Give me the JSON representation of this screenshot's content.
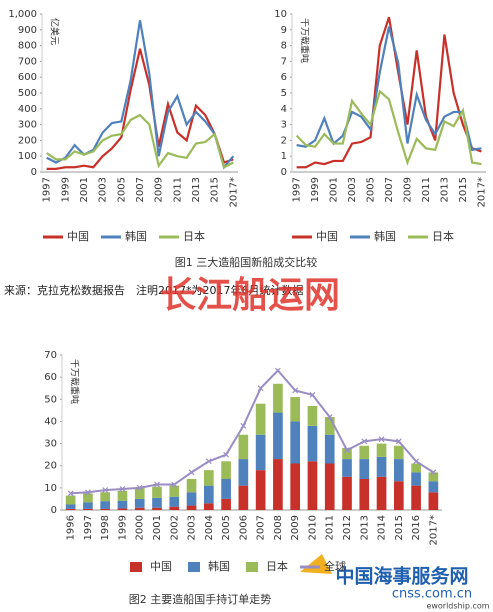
{
  "chart_data": [
    {
      "type": "line",
      "y_label": "亿美元",
      "categories": [
        "1997",
        null,
        "1999",
        null,
        "2001",
        null,
        "2003",
        null,
        "2005",
        null,
        "2007",
        null,
        "2009",
        null,
        "2011",
        null,
        "2013",
        null,
        "2015",
        null,
        "2017*"
      ],
      "series": [
        {
          "name": "中国",
          "color": "#c8302a",
          "values": [
            20,
            20,
            30,
            30,
            40,
            30,
            100,
            150,
            220,
            520,
            780,
            550,
            160,
            430,
            250,
            200,
            420,
            360,
            240,
            60,
            80
          ]
        },
        {
          "name": "韩国",
          "color": "#4f81bd",
          "values": [
            90,
            60,
            90,
            170,
            110,
            140,
            250,
            310,
            320,
            580,
            960,
            620,
            100,
            380,
            480,
            300,
            380,
            320,
            240,
            30,
            100
          ]
        },
        {
          "name": "日本",
          "color": "#9bbb59",
          "values": [
            120,
            80,
            80,
            130,
            110,
            130,
            200,
            230,
            240,
            330,
            360,
            300,
            40,
            120,
            100,
            90,
            180,
            190,
            240,
            30,
            60
          ]
        }
      ],
      "ylim": [
        0,
        1000
      ],
      "yticks": [
        0,
        100,
        200,
        300,
        400,
        500,
        600,
        700,
        800,
        900,
        {
          "value": 1000,
          "label": "1,000"
        }
      ],
      "grid": false,
      "legend": "bottom"
    },
    {
      "type": "line",
      "y_label": "千万载重吨",
      "categories": [
        "1997",
        null,
        "1999",
        null,
        "2001",
        null,
        "2003",
        null,
        "2005",
        null,
        "2007",
        null,
        "2009",
        null,
        "2011",
        null,
        "2013",
        null,
        "2015",
        null,
        "2017*"
      ],
      "series": [
        {
          "name": "中国",
          "color": "#c8302a",
          "values": [
            0.3,
            0.3,
            0.6,
            0.5,
            0.7,
            0.7,
            1.8,
            1.9,
            2.2,
            8.0,
            9.8,
            6.3,
            3.0,
            7.7,
            3.5,
            2.0,
            8.7,
            5.0,
            3.0,
            1.5,
            1.3
          ]
        },
        {
          "name": "韩国",
          "color": "#4f81bd",
          "values": [
            1.7,
            1.6,
            2.0,
            3.4,
            1.8,
            2.3,
            3.8,
            3.5,
            2.7,
            6.3,
            9.2,
            6.9,
            1.8,
            4.9,
            3.3,
            2.4,
            3.5,
            3.8,
            3.8,
            1.4,
            1.5
          ]
        },
        {
          "name": "日本",
          "color": "#9bbb59",
          "values": [
            2.3,
            1.7,
            1.6,
            2.4,
            1.8,
            1.8,
            4.5,
            3.7,
            3.0,
            5.1,
            4.6,
            2.5,
            0.6,
            2.1,
            1.5,
            1.4,
            3.2,
            2.9,
            3.9,
            0.6,
            0.5
          ]
        }
      ],
      "ylim": [
        0,
        10
      ],
      "yticks": [
        0,
        1,
        2,
        3,
        4,
        5,
        6,
        7,
        8,
        9,
        10
      ],
      "grid": false,
      "legend": "bottom"
    },
    {
      "type": "bar",
      "stacked": true,
      "y_label": "千万载重吨",
      "categories": [
        "1996",
        "1997",
        "1998",
        "1999",
        "2000",
        "2001",
        "2002",
        "2003",
        "2004",
        "2005",
        "2006",
        "2007",
        "2008",
        "2009",
        "2010",
        "2011",
        "2012",
        "2013",
        "2014",
        "2015",
        "2016",
        "2017*"
      ],
      "series": [
        {
          "name": "中国",
          "color": "#c8302a",
          "values": [
            0.5,
            0.5,
            0.5,
            0.7,
            1,
            1,
            1.5,
            2,
            3,
            5,
            11,
            18,
            23,
            21,
            22,
            21,
            15,
            14,
            15,
            13,
            11,
            8
          ]
        },
        {
          "name": "韩国",
          "color": "#4f81bd",
          "values": [
            2,
            3,
            3.5,
            3.5,
            4,
            4.5,
            4.5,
            6,
            8,
            9,
            12,
            16,
            21,
            19,
            16,
            13,
            8,
            9,
            9,
            10,
            6,
            5
          ]
        },
        {
          "name": "日本",
          "color": "#9bbb59",
          "values": [
            4,
            4,
            4,
            4.5,
            5,
            5,
            5,
            6,
            7,
            8,
            11,
            14,
            13,
            11,
            9,
            8,
            5,
            6,
            6,
            6,
            4,
            4
          ]
        },
        {
          "name": "全球",
          "color": "#9a8cc4",
          "type": "line",
          "values": [
            7.5,
            8,
            9,
            9.5,
            10,
            11.5,
            11.5,
            17,
            22,
            25,
            38,
            55,
            63,
            54,
            52,
            42,
            27,
            31,
            32,
            31,
            22,
            17
          ]
        }
      ],
      "ylim": [
        0,
        70
      ],
      "yticks": [
        0,
        10,
        20,
        30,
        40,
        50,
        60,
        70
      ],
      "grid": false,
      "legend": "bottom"
    }
  ],
  "figure_1_caption": "图1 三大造船国新船成交比较",
  "source_note": "来源：克拉克松数据报告　注明2017*为2017年6月统计数据",
  "watermark": "长江船运网",
  "figure_2_caption": "图2 主要造船国手持订单走势",
  "logo": {
    "name": "中国海事服务网",
    "url": "cnss.com.cn",
    "site": "eworldship.com"
  }
}
